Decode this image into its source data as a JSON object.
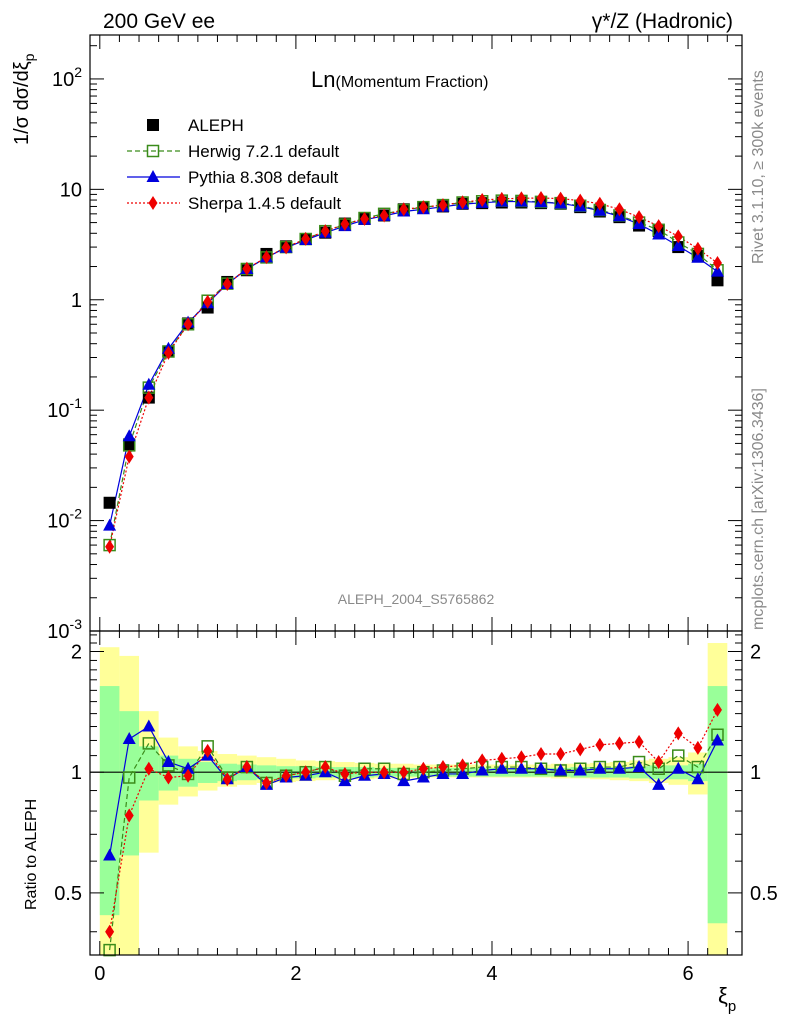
{
  "header": {
    "left": "200 GeV ee",
    "right": "γ*/Z (Hadronic)"
  },
  "title_main": "Ln",
  "title_sub": "(Momentum Fraction)",
  "ylabel_top": "1/σ dσ/dξ",
  "ylabel_top_sub": "p",
  "ylabel_bottom": "Ratio to ALEPH",
  "xlabel": "ξ",
  "xlabel_sub": "p",
  "analysis_id": "ALEPH_2004_S5765862",
  "side_text_top": "Rivet 3.1.10, ≥ 300k events",
  "side_text_bottom": "mcplots.cern.ch [arXiv:1306.3436]",
  "legend": [
    {
      "label": "ALEPH",
      "key": "data"
    },
    {
      "label": "Herwig 7.2.1 default",
      "key": "herwig"
    },
    {
      "label": "Pythia 8.308 default",
      "key": "pythia"
    },
    {
      "label": "Sherpa 1.4.5 default",
      "key": "sherpa"
    }
  ],
  "colors": {
    "data": "#000000",
    "herwig": "#3a8c1a",
    "pythia": "#0000dd",
    "sherpa": "#ee0000",
    "band_inner": "#99ff99",
    "band_outer": "#ffff99"
  },
  "chart_data": {
    "type": "line",
    "title": "Ln(Momentum Fraction)",
    "xlabel": "ξp",
    "ylabel": "1/σ dσ/dξp",
    "yscale": "log",
    "xlim": [
      -0.1,
      6.55
    ],
    "ylim": [
      0.001,
      250
    ],
    "ratio_ylim": [
      0.35,
      2.25
    ],
    "x_ticks": [
      "0",
      "2",
      "4",
      "6"
    ],
    "y_ticks": [
      "10^-3",
      "10^-2",
      "10^-1",
      "1",
      "10",
      "10^2"
    ],
    "ratio_ticks": [
      "0.5",
      "1",
      "2"
    ],
    "x": [
      0.1,
      0.3,
      0.5,
      0.7,
      0.9,
      1.1,
      1.3,
      1.5,
      1.7,
      1.9,
      2.1,
      2.3,
      2.5,
      2.7,
      2.9,
      3.1,
      3.3,
      3.5,
      3.7,
      3.9,
      4.1,
      4.3,
      4.5,
      4.7,
      4.9,
      5.1,
      5.3,
      5.5,
      5.7,
      5.9,
      6.1,
      6.3
    ],
    "bin_edges": [
      0.0,
      0.2,
      0.4,
      0.6,
      0.8,
      1.0,
      1.2,
      1.4,
      1.6,
      1.8,
      2.0,
      2.2,
      2.4,
      2.6,
      2.8,
      3.0,
      3.2,
      3.4,
      3.6,
      3.8,
      4.0,
      4.2,
      4.4,
      4.6,
      4.8,
      5.0,
      5.2,
      5.4,
      5.6,
      5.8,
      6.0,
      6.2,
      6.4
    ],
    "series": [
      {
        "name": "ALEPH",
        "key": "data",
        "values": [
          0.0145,
          0.049,
          0.13,
          0.34,
          0.61,
          0.85,
          1.45,
          1.85,
          2.6,
          3.05,
          3.55,
          4.05,
          4.9,
          5.4,
          5.8,
          6.6,
          6.8,
          7.0,
          7.4,
          7.5,
          7.6,
          7.6,
          7.5,
          7.4,
          6.9,
          6.3,
          5.6,
          4.7,
          4.2,
          3.0,
          2.5,
          1.5
        ]
      },
      {
        "name": "Herwig 7.2.1 default",
        "key": "herwig",
        "values": [
          0.006,
          0.048,
          0.16,
          0.34,
          0.6,
          0.98,
          1.4,
          1.9,
          2.42,
          3.0,
          3.55,
          4.18,
          4.8,
          5.5,
          6.0,
          6.5,
          6.9,
          7.2,
          7.6,
          7.8,
          7.9,
          7.85,
          7.7,
          7.5,
          7.1,
          6.5,
          5.8,
          5.0,
          4.3,
          3.3,
          2.6,
          1.85
        ]
      },
      {
        "name": "Pythia 8.308 default",
        "key": "pythia",
        "values": [
          0.009,
          0.058,
          0.17,
          0.36,
          0.62,
          0.93,
          1.39,
          1.9,
          2.42,
          2.96,
          3.48,
          4.05,
          4.65,
          5.3,
          5.75,
          6.3,
          6.6,
          6.95,
          7.35,
          7.55,
          7.75,
          7.75,
          7.65,
          7.45,
          7.0,
          6.4,
          5.7,
          4.85,
          3.9,
          3.07,
          2.4,
          1.8
        ]
      },
      {
        "name": "Sherpa 1.4.5 default",
        "key": "sherpa",
        "values": [
          0.0058,
          0.038,
          0.13,
          0.33,
          0.6,
          0.96,
          1.39,
          1.91,
          2.43,
          2.98,
          3.56,
          4.18,
          4.85,
          5.4,
          5.8,
          6.6,
          6.9,
          7.2,
          7.65,
          8.0,
          8.2,
          8.3,
          8.35,
          8.25,
          7.9,
          7.4,
          6.6,
          5.6,
          4.65,
          3.75,
          2.9,
          2.15
        ]
      }
    ],
    "ratios": [
      {
        "key": "herwig",
        "values": [
          0.36,
          0.97,
          1.18,
          1.04,
          0.99,
          1.16,
          0.97,
          1.03,
          0.94,
          0.98,
          1.0,
          1.03,
          0.98,
          1.02,
          1.02,
          0.99,
          1.0,
          1.01,
          1.02,
          1.03,
          1.03,
          1.03,
          1.02,
          1.01,
          1.02,
          1.03,
          1.03,
          1.06,
          1.02,
          1.1,
          1.03,
          1.24
        ]
      },
      {
        "key": "pythia",
        "values": [
          0.62,
          1.21,
          1.3,
          1.06,
          1.02,
          1.1,
          0.96,
          1.03,
          0.93,
          0.97,
          0.98,
          1.0,
          0.95,
          0.98,
          0.99,
          0.95,
          0.97,
          0.99,
          0.99,
          1.01,
          1.02,
          1.02,
          1.02,
          1.01,
          1.01,
          1.02,
          1.02,
          1.03,
          0.93,
          1.02,
          0.96,
          1.2
        ]
      },
      {
        "key": "sherpa",
        "values": [
          0.4,
          0.78,
          1.02,
          0.97,
          0.98,
          1.13,
          0.96,
          1.03,
          0.94,
          0.98,
          1.0,
          1.03,
          0.99,
          1.0,
          1.0,
          1.0,
          1.02,
          1.03,
          1.04,
          1.07,
          1.08,
          1.09,
          1.11,
          1.11,
          1.14,
          1.17,
          1.18,
          1.19,
          1.06,
          1.25,
          1.15,
          1.43
        ]
      }
    ],
    "band_inner": [
      [
        0.44,
        1.64
      ],
      [
        0.62,
        1.42
      ],
      [
        0.85,
        1.16
      ],
      [
        0.9,
        1.1
      ],
      [
        0.92,
        1.08
      ],
      [
        0.94,
        1.06
      ],
      [
        0.95,
        1.05
      ],
      [
        0.955,
        1.045
      ],
      [
        0.96,
        1.04
      ],
      [
        0.965,
        1.035
      ],
      [
        0.965,
        1.035
      ],
      [
        0.97,
        1.03
      ],
      [
        0.97,
        1.03
      ],
      [
        0.97,
        1.03
      ],
      [
        0.975,
        1.025
      ],
      [
        0.975,
        1.025
      ],
      [
        0.975,
        1.025
      ],
      [
        0.975,
        1.025
      ],
      [
        0.975,
        1.025
      ],
      [
        0.975,
        1.025
      ],
      [
        0.975,
        1.025
      ],
      [
        0.975,
        1.025
      ],
      [
        0.975,
        1.025
      ],
      [
        0.975,
        1.025
      ],
      [
        0.97,
        1.03
      ],
      [
        0.97,
        1.03
      ],
      [
        0.97,
        1.03
      ],
      [
        0.965,
        1.035
      ],
      [
        0.96,
        1.04
      ],
      [
        0.96,
        1.04
      ],
      [
        0.95,
        1.05
      ],
      [
        0.42,
        1.64
      ]
    ],
    "band_outer": [
      [
        0.35,
        2.05
      ],
      [
        0.35,
        1.95
      ],
      [
        0.63,
        1.42
      ],
      [
        0.83,
        1.22
      ],
      [
        0.87,
        1.16
      ],
      [
        0.9,
        1.13
      ],
      [
        0.92,
        1.11
      ],
      [
        0.93,
        1.1
      ],
      [
        0.94,
        1.09
      ],
      [
        0.945,
        1.08
      ],
      [
        0.95,
        1.07
      ],
      [
        0.955,
        1.065
      ],
      [
        0.96,
        1.06
      ],
      [
        0.96,
        1.055
      ],
      [
        0.965,
        1.05
      ],
      [
        0.965,
        1.05
      ],
      [
        0.97,
        1.045
      ],
      [
        0.97,
        1.045
      ],
      [
        0.97,
        1.045
      ],
      [
        0.97,
        1.045
      ],
      [
        0.97,
        1.045
      ],
      [
        0.97,
        1.045
      ],
      [
        0.97,
        1.045
      ],
      [
        0.965,
        1.05
      ],
      [
        0.965,
        1.05
      ],
      [
        0.96,
        1.055
      ],
      [
        0.955,
        1.06
      ],
      [
        0.95,
        1.07
      ],
      [
        0.94,
        1.08
      ],
      [
        0.93,
        1.09
      ],
      [
        0.88,
        1.12
      ],
      [
        0.35,
        2.1
      ]
    ]
  }
}
